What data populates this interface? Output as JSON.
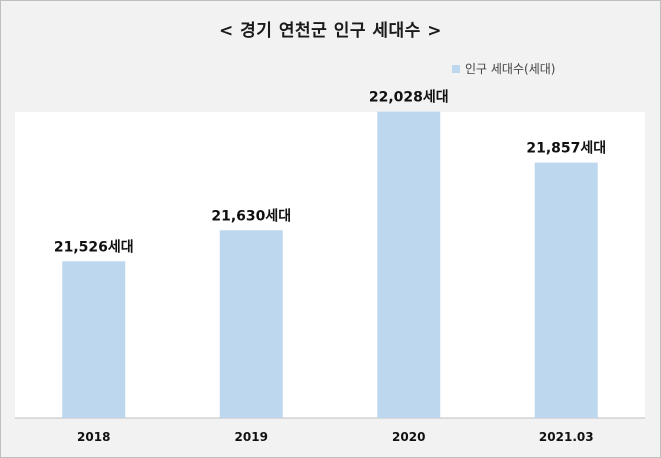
{
  "chart_data": {
    "type": "bar",
    "title": "< 경기 연천군 인구 세대수 >",
    "categories": [
      "2018",
      "2019",
      "2020",
      "2021.03"
    ],
    "series": [
      {
        "name": "인구 세대수(세대)",
        "values": [
          21526,
          21630,
          22028,
          21857
        ]
      }
    ],
    "data_labels": [
      "21,526세대",
      "21,630세대",
      "22,028세대",
      "21,857세대"
    ],
    "ylim": [
      21000,
      22000
    ],
    "xlabel": "",
    "ylabel": "",
    "grid": false,
    "legend_position": "top-right",
    "colors": {
      "bar": "#bdd7ee",
      "background": "#f2f2f2",
      "plot_background": "#ffffff",
      "axis": "#bfbfbf"
    }
  }
}
